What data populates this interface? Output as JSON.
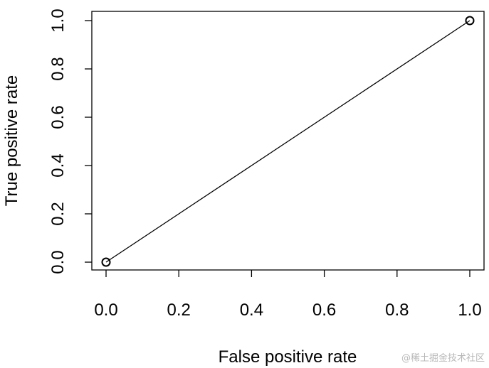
{
  "chart_data": {
    "type": "line",
    "title": "",
    "xlabel": "False positive rate",
    "ylabel": "True positive rate",
    "xlim": [
      0,
      1
    ],
    "ylim": [
      0,
      1
    ],
    "xticks": [
      "0.0",
      "0.2",
      "0.4",
      "0.6",
      "0.8",
      "1.0"
    ],
    "yticks": [
      "0.0",
      "0.2",
      "0.4",
      "0.6",
      "0.8",
      "1.0"
    ],
    "grid": false,
    "markers": "open-circle",
    "series": [
      {
        "x": [
          0,
          1
        ],
        "y": [
          0,
          1
        ]
      }
    ]
  },
  "watermark": "@稀土掘金技术社区"
}
